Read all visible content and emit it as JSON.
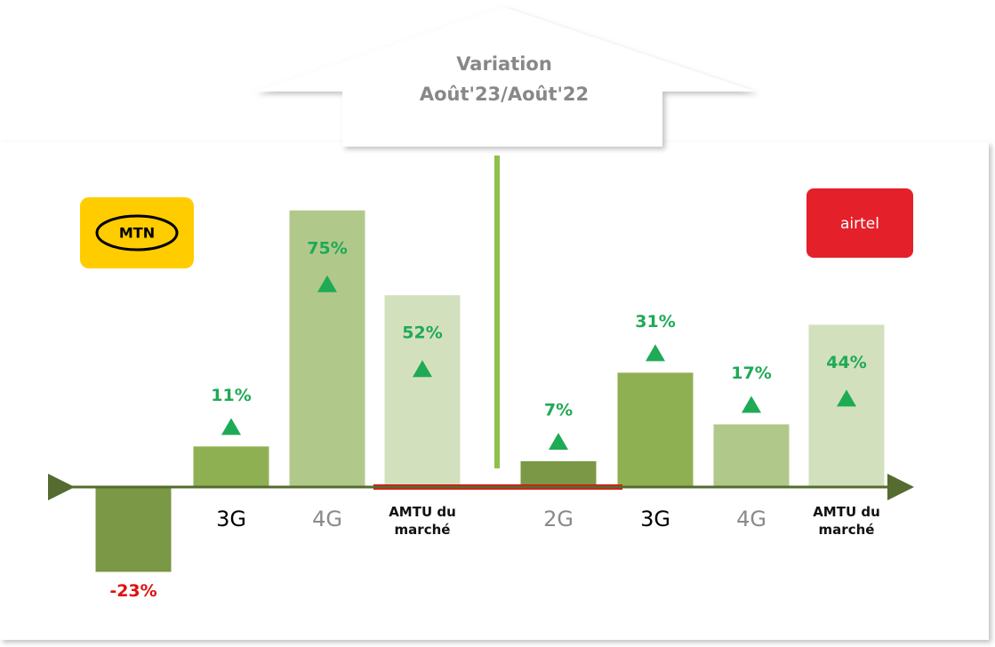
{
  "chart_data": {
    "type": "bar",
    "title": "Variation Août'23/Août'22",
    "categories": [
      "2G",
      "3G",
      "4G",
      "AMTU du marché"
    ],
    "colors": [
      "#7a9845",
      "#8fb052",
      "#b0c98a",
      "#d3e0be"
    ],
    "positive_color": "#1faa55",
    "negative_color": "#e01010",
    "series": [
      {
        "name": "MTN",
        "color": "#ffcc00",
        "values": [
          -23,
          11,
          75,
          52
        ],
        "value_labels": [
          "-23%",
          "11%",
          "75%",
          "52%"
        ]
      },
      {
        "name": "airtel",
        "color": "#e4202a",
        "values": [
          7,
          31,
          17,
          44
        ],
        "value_labels": [
          "7%",
          "31%",
          "17%",
          "44%"
        ]
      }
    ]
  }
}
